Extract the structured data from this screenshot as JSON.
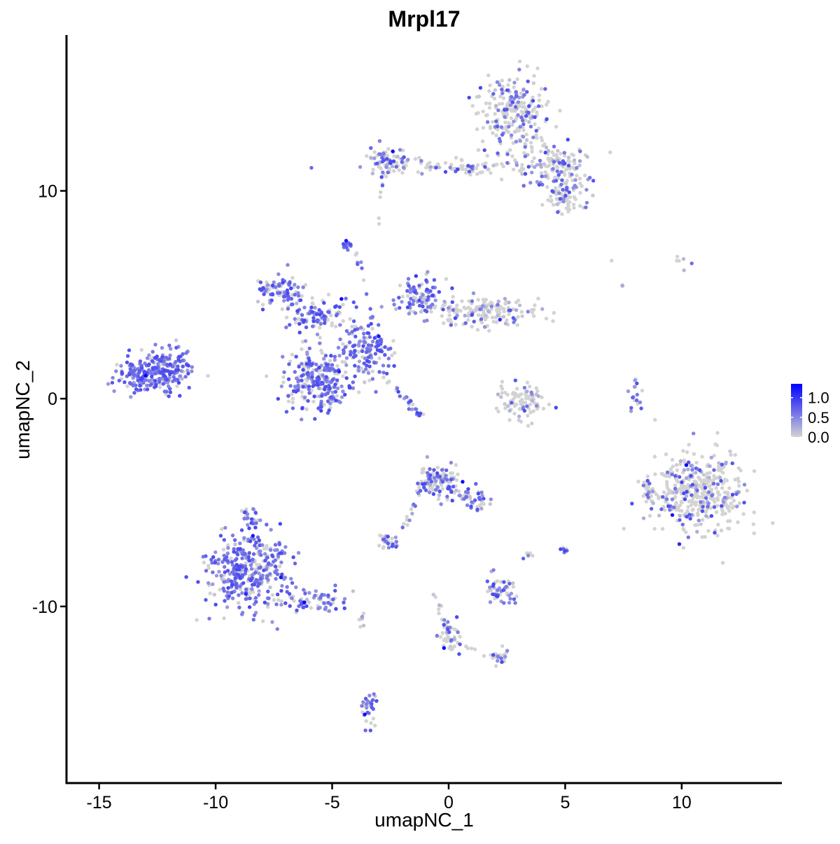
{
  "chart_data": {
    "type": "scatter",
    "title": "Mrpl17",
    "xlabel": "umapNC_1",
    "ylabel": "umapNC_2",
    "xlim": [
      -16.4,
      14.3
    ],
    "ylim": [
      -18.5,
      17.5
    ],
    "x_ticks": [
      -15,
      -10,
      -5,
      0,
      5,
      10
    ],
    "y_ticks": [
      -10,
      0,
      10
    ],
    "grid": false,
    "point_colors": {
      "low": "#d3d3d3",
      "high": "#0000ff"
    },
    "color_scale": {
      "min": 0,
      "max": 1.35,
      "ticks": [
        0.0,
        0.5,
        1.0
      ],
      "tick_labels": [
        "0.0",
        "0.5",
        "1.0"
      ]
    },
    "legend_position": "right",
    "clusters": [
      {
        "cx": 2.8,
        "cy": 13.7,
        "sx": 0.9,
        "sy": 1.1,
        "n": 240,
        "expr": 0.25
      },
      {
        "cx": 4.6,
        "cy": 11.2,
        "sx": 0.9,
        "sy": 0.7,
        "n": 140,
        "expr": 0.3
      },
      {
        "cx": 5.0,
        "cy": 9.7,
        "sx": 0.6,
        "sy": 0.5,
        "n": 70,
        "expr": 0.25
      },
      {
        "cx": 0.8,
        "cy": 11.2,
        "sx": 2.3,
        "sy": 0.3,
        "n": 90,
        "expr": 0.25
      },
      {
        "cx": -2.7,
        "cy": 11.5,
        "sx": 0.6,
        "sy": 0.4,
        "n": 70,
        "expr": 0.35
      },
      {
        "cx": -12.9,
        "cy": 1.2,
        "sx": 0.9,
        "sy": 0.55,
        "n": 220,
        "expr": 0.8
      },
      {
        "cx": -11.7,
        "cy": 1.7,
        "sx": 0.45,
        "sy": 0.55,
        "n": 60,
        "expr": 0.8
      },
      {
        "cx": -7.3,
        "cy": 5.2,
        "sx": 0.7,
        "sy": 0.45,
        "n": 90,
        "expr": 0.7
      },
      {
        "cx": -5.5,
        "cy": 4.0,
        "sx": 0.9,
        "sy": 0.5,
        "n": 90,
        "expr": 0.7
      },
      {
        "cx": -5.6,
        "cy": 0.8,
        "sx": 1.0,
        "sy": 0.9,
        "n": 260,
        "expr": 0.65
      },
      {
        "cx": -3.5,
        "cy": 2.4,
        "sx": 0.7,
        "sy": 0.8,
        "n": 130,
        "expr": 0.7
      },
      {
        "cx": -1.2,
        "cy": 4.9,
        "sx": 0.6,
        "sy": 0.6,
        "n": 90,
        "expr": 0.65
      },
      {
        "cx": 1.5,
        "cy": 4.2,
        "sx": 1.4,
        "sy": 0.4,
        "n": 160,
        "expr": 0.2
      },
      {
        "cx": -4.4,
        "cy": 7.3,
        "sx": 0.15,
        "sy": 0.15,
        "n": 12,
        "expr": 0.8
      },
      {
        "cx": 3.2,
        "cy": -0.2,
        "sx": 0.6,
        "sy": 0.6,
        "n": 90,
        "expr": 0.15
      },
      {
        "cx": 8.0,
        "cy": 0.2,
        "sx": 0.2,
        "sy": 0.5,
        "n": 18,
        "expr": 0.6
      },
      {
        "cx": 10.7,
        "cy": -4.5,
        "sx": 1.3,
        "sy": 1.3,
        "n": 420,
        "expr": 0.15
      },
      {
        "cx": 8.5,
        "cy": -4.4,
        "sx": 0.25,
        "sy": 0.35,
        "n": 20,
        "expr": 0.4
      },
      {
        "cx": -8.6,
        "cy": -8.3,
        "sx": 1.1,
        "sy": 1.2,
        "n": 360,
        "expr": 0.75
      },
      {
        "cx": -5.8,
        "cy": -9.7,
        "sx": 0.8,
        "sy": 0.35,
        "n": 60,
        "expr": 0.65
      },
      {
        "cx": -0.5,
        "cy": -3.9,
        "sx": 0.5,
        "sy": 0.45,
        "n": 110,
        "expr": 0.35
      },
      {
        "cx": 0.8,
        "cy": -4.8,
        "sx": 0.6,
        "sy": 0.4,
        "n": 40,
        "expr": 0.6
      },
      {
        "cx": -2.6,
        "cy": -6.9,
        "sx": 0.3,
        "sy": 0.2,
        "n": 25,
        "expr": 0.55
      },
      {
        "cx": 2.3,
        "cy": -9.2,
        "sx": 0.45,
        "sy": 0.4,
        "n": 50,
        "expr": 0.7
      },
      {
        "cx": 5.0,
        "cy": -7.3,
        "sx": 0.1,
        "sy": 0.15,
        "n": 8,
        "expr": 0.8
      },
      {
        "cx": 0.1,
        "cy": -11.5,
        "sx": 0.4,
        "sy": 0.5,
        "n": 40,
        "expr": 0.3
      },
      {
        "cx": 2.2,
        "cy": -12.4,
        "sx": 0.3,
        "sy": 0.2,
        "n": 15,
        "expr": 0.5
      },
      {
        "cx": -3.4,
        "cy": -14.9,
        "sx": 0.2,
        "sy": 0.6,
        "n": 30,
        "expr": 0.7
      },
      {
        "cx": -3.8,
        "cy": -10.5,
        "sx": 0.15,
        "sy": 0.3,
        "n": 8,
        "expr": 0.4
      },
      {
        "cx": -8.5,
        "cy": -5.7,
        "sx": 0.3,
        "sy": 0.3,
        "n": 20,
        "expr": 0.55
      },
      {
        "cx": 9.9,
        "cy": 6.7,
        "sx": 0.3,
        "sy": 0.3,
        "n": 6,
        "expr": 0.1
      }
    ],
    "streaks": [
      {
        "from": [
          -3.0,
          1.4
        ],
        "to": [
          -1.2,
          -0.8
        ],
        "n": 30,
        "expr": 0.6
      },
      {
        "from": [
          -4.0,
          7.0
        ],
        "to": [
          -3.1,
          3.0
        ],
        "n": 14,
        "expr": 0.5
      },
      {
        "from": [
          -2.8,
          10.9
        ],
        "to": [
          -3.0,
          8.4
        ],
        "n": 8,
        "expr": 0.15
      },
      {
        "from": [
          1.4,
          -4.6
        ],
        "to": [
          1.3,
          -5.7
        ],
        "n": 10,
        "expr": 0.6
      },
      {
        "from": [
          -1.3,
          -4.6
        ],
        "to": [
          -1.9,
          -6.2
        ],
        "n": 12,
        "expr": 0.6
      },
      {
        "from": [
          -0.7,
          -9.2
        ],
        "to": [
          0.1,
          -11.6
        ],
        "n": 12,
        "expr": 0.2
      },
      {
        "from": [
          0.6,
          -11.9
        ],
        "to": [
          2.4,
          -12.6
        ],
        "n": 12,
        "expr": 0.3
      },
      {
        "from": [
          6.9,
          6.9
        ],
        "to": [
          7.7,
          4.6
        ],
        "n": 4,
        "expr": 0.0
      },
      {
        "from": [
          3.1,
          -7.9
        ],
        "to": [
          3.7,
          -7.3
        ],
        "n": 5,
        "expr": 0.3
      }
    ],
    "highlights": [
      {
        "x": -2.4,
        "y": 11.9,
        "v": 1.3
      },
      {
        "x": -13.0,
        "y": 1.1,
        "v": 1.3
      },
      {
        "x": -4.6,
        "y": 4.8,
        "v": 1.3
      },
      {
        "x": -4.4,
        "y": 7.6,
        "v": 1.2
      },
      {
        "x": -3.0,
        "y": 3.0,
        "v": 1.2
      },
      {
        "x": -4.7,
        "y": 1.3,
        "v": 1.1
      },
      {
        "x": -8.4,
        "y": -6.6,
        "v": 1.2
      },
      {
        "x": -7.2,
        "y": -8.6,
        "v": 1.2
      },
      {
        "x": -8.7,
        "y": -9.4,
        "v": 1.1
      },
      {
        "x": -6.2,
        "y": -9.8,
        "v": 1.3
      },
      {
        "x": 0.6,
        "y": -4.0,
        "v": 1.3
      },
      {
        "x": -0.2,
        "y": -12.0,
        "v": 1.3
      },
      {
        "x": -3.6,
        "y": -15.2,
        "v": 1.3
      },
      {
        "x": 9.6,
        "y": -5.6,
        "v": 1.2
      },
      {
        "x": 10.2,
        "y": -3.2,
        "v": 1.3
      },
      {
        "x": 9.9,
        "y": -7.0,
        "v": 1.1
      },
      {
        "x": 2.2,
        "y": 3.8,
        "v": 1.1
      },
      {
        "x": -1.4,
        "y": 5.9,
        "v": 1.0
      }
    ]
  }
}
